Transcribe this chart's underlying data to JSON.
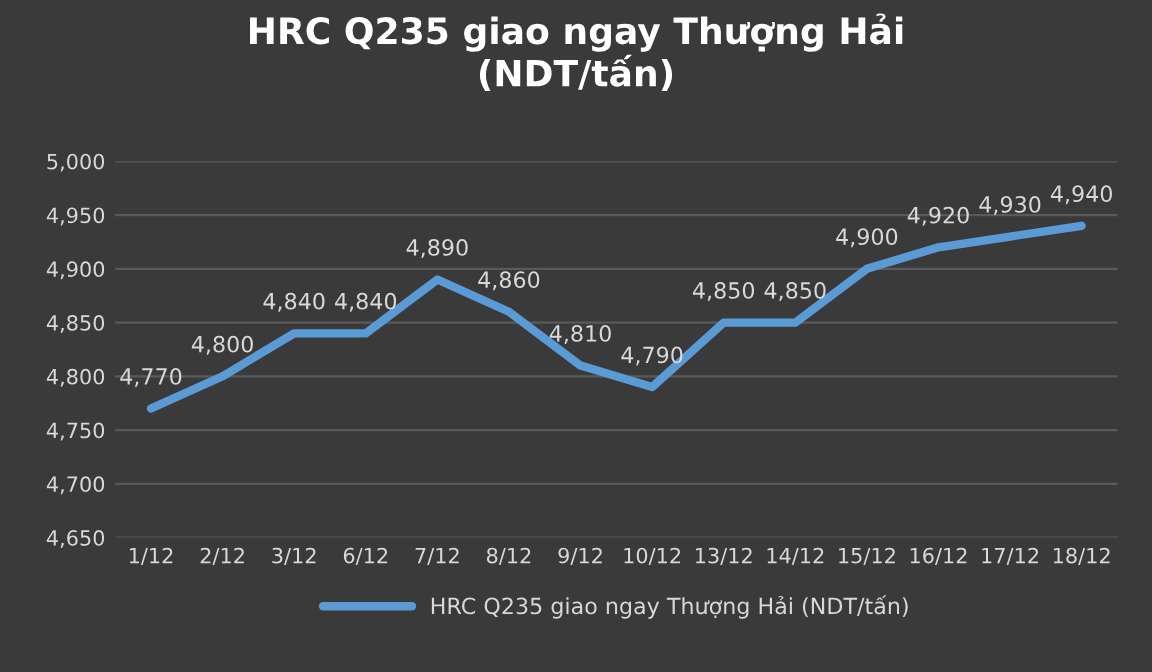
{
  "chart_data": {
    "type": "line",
    "title": "HRC Q235 giao ngay Thượng Hải\n(NDT/tấn)",
    "categories": [
      "1/12",
      "2/12",
      "3/12",
      "6/12",
      "7/12",
      "8/12",
      "9/12",
      "10/12",
      "13/12",
      "14/12",
      "15/12",
      "16/12",
      "17/12",
      "18/12"
    ],
    "series": [
      {
        "name": "HRC Q235 giao ngay Thượng Hải (NDT/tấn)",
        "color": "#5b9bd5",
        "values": [
          4770,
          4800,
          4840,
          4840,
          4890,
          4860,
          4810,
          4790,
          4850,
          4850,
          4900,
          4920,
          4930,
          4940
        ],
        "value_labels": [
          "4,770",
          "4,800",
          "4,840",
          "4,840",
          "4,890",
          "4,860",
          "4,810",
          "4,790",
          "4,850",
          "4,850",
          "4,900",
          "4,920",
          "4,930",
          "4,940"
        ]
      }
    ],
    "ylim": [
      4650,
      5000
    ],
    "yticks": [
      {
        "value": 4650,
        "label": "4,650"
      },
      {
        "value": 4700,
        "label": "4,700"
      },
      {
        "value": 4750,
        "label": "4,750"
      },
      {
        "value": 4800,
        "label": "4,800"
      },
      {
        "value": 4850,
        "label": "4,850"
      },
      {
        "value": 4900,
        "label": "4,900"
      },
      {
        "value": 4950,
        "label": "4,950"
      },
      {
        "value": 5000,
        "label": "5,000"
      }
    ],
    "grid": "y",
    "legend": "bottom",
    "marker": "none",
    "line_style": "solid"
  }
}
